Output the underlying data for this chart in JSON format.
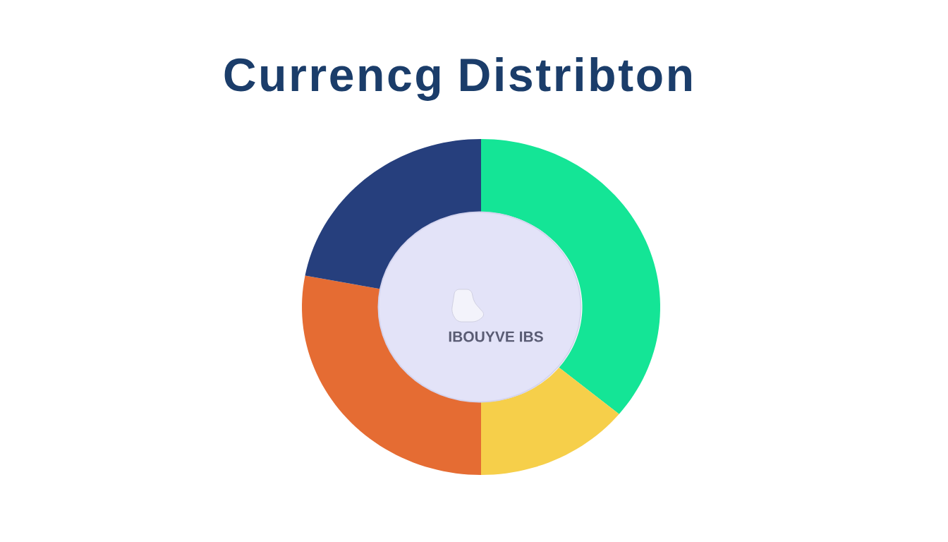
{
  "chart_data": {
    "type": "donut",
    "title": "Currencg Distribton",
    "categories": [
      null,
      null,
      null,
      null
    ],
    "values": [
      36,
      14,
      28,
      22
    ],
    "colors": [
      "#14e596",
      "#f6cf4a",
      "#e56c33",
      "#263f7d"
    ],
    "annotations": [
      "IBOUYVE IBS"
    ]
  }
}
